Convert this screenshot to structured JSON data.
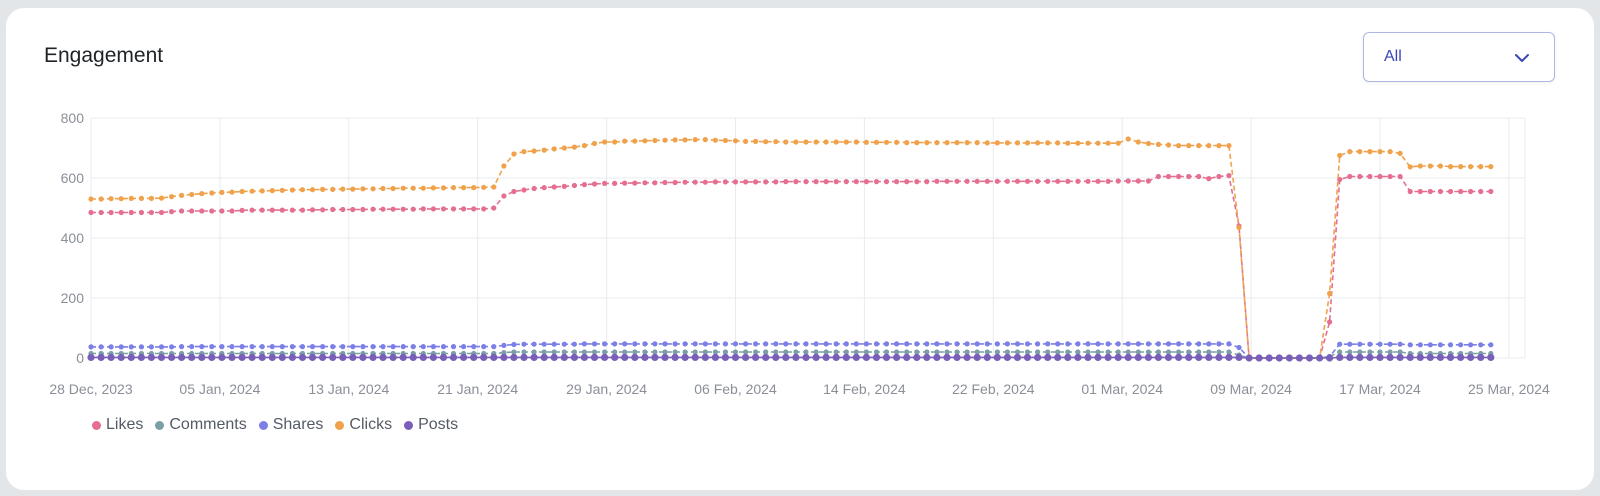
{
  "card": {
    "title": "Engagement",
    "filter": {
      "selected": "All",
      "icon": "chevron-down-icon"
    }
  },
  "colors": {
    "likes": "#e46f91",
    "comments": "#7c9fa6",
    "shares": "#7b7fe6",
    "clicks": "#efa24b",
    "posts": "#7a5fb8",
    "grid": "#e9ebee",
    "accent": "#3a46b8"
  },
  "chart_data": {
    "type": "line",
    "x_start": "2023-12-28",
    "x_end": "2024-03-26",
    "x_tick_labels": [
      "28 Dec, 2023",
      "05 Jan, 2024",
      "13 Jan, 2024",
      "21 Jan, 2024",
      "29 Jan, 2024",
      "06 Feb, 2024",
      "14 Feb, 2024",
      "22 Feb, 2024",
      "01 Mar, 2024",
      "09 Mar, 2024",
      "17 Mar, 2024",
      "25 Mar, 2024"
    ],
    "y_ticks": [
      0,
      200,
      400,
      600,
      800
    ],
    "ylim": [
      0,
      800
    ],
    "grid": true,
    "legend_position": "bottom-left",
    "series": [
      {
        "name": "Likes",
        "color_key": "likes",
        "dashed": true,
        "values": [
          485,
          485,
          485,
          485,
          485,
          485,
          485,
          485,
          488,
          490,
          490,
          490,
          490,
          490,
          490,
          492,
          493,
          493,
          493,
          493,
          493,
          493,
          494,
          494,
          495,
          495,
          495,
          495,
          496,
          496,
          496,
          496,
          496,
          497,
          497,
          497,
          497,
          497,
          497,
          497,
          500,
          540,
          555,
          560,
          565,
          568,
          570,
          572,
          575,
          578,
          580,
          582,
          582,
          583,
          583,
          584,
          584,
          585,
          585,
          586,
          586,
          586,
          587,
          587,
          587,
          587,
          587,
          587,
          587,
          588,
          588,
          588,
          588,
          588,
          588,
          588,
          588,
          588,
          588,
          588,
          588,
          588,
          588,
          588,
          589,
          589,
          589,
          589,
          589,
          589,
          589,
          589,
          589,
          589,
          589,
          589,
          589,
          589,
          589,
          589,
          589,
          589,
          590,
          590,
          590,
          590,
          605,
          605,
          605,
          605,
          605,
          598,
          605,
          608,
          440,
          0,
          0,
          0,
          0,
          0,
          0,
          0,
          0,
          120,
          595,
          605,
          605,
          605,
          605,
          605,
          605,
          555,
          555,
          555,
          555,
          555,
          555,
          555,
          555,
          555
        ]
      },
      {
        "name": "Comments",
        "color_key": "comments",
        "dashed": true,
        "values": [
          15,
          15,
          15,
          15,
          15,
          15,
          15,
          15,
          15,
          15,
          15,
          15,
          15,
          15,
          15,
          15,
          15,
          15,
          15,
          15,
          15,
          15,
          15,
          15,
          15,
          15,
          15,
          15,
          15,
          15,
          15,
          15,
          15,
          15,
          15,
          15,
          15,
          15,
          15,
          15,
          15,
          18,
          20,
          20,
          20,
          20,
          20,
          20,
          20,
          20,
          20,
          20,
          20,
          20,
          20,
          20,
          20,
          20,
          20,
          20,
          20,
          20,
          20,
          20,
          20,
          20,
          20,
          20,
          20,
          20,
          20,
          20,
          20,
          20,
          20,
          20,
          20,
          20,
          20,
          20,
          20,
          20,
          20,
          20,
          20,
          20,
          20,
          20,
          20,
          20,
          20,
          20,
          20,
          20,
          20,
          20,
          20,
          20,
          20,
          20,
          20,
          20,
          20,
          20,
          20,
          20,
          20,
          20,
          20,
          20,
          20,
          20,
          20,
          20,
          10,
          0,
          0,
          0,
          0,
          0,
          0,
          0,
          0,
          5,
          20,
          20,
          20,
          20,
          20,
          20,
          20,
          15,
          15,
          15,
          15,
          15,
          15,
          15,
          15,
          15
        ]
      },
      {
        "name": "Shares",
        "color_key": "shares",
        "dashed": true,
        "values": [
          37,
          37,
          37,
          37,
          37,
          37,
          37,
          37,
          37,
          38,
          38,
          38,
          38,
          38,
          38,
          38,
          38,
          38,
          38,
          38,
          38,
          38,
          38,
          38,
          38,
          38,
          38,
          38,
          38,
          38,
          38,
          38,
          38,
          38,
          38,
          38,
          38,
          38,
          38,
          38,
          38,
          42,
          45,
          46,
          46,
          46,
          46,
          46,
          46,
          47,
          47,
          47,
          47,
          47,
          47,
          47,
          47,
          47,
          47,
          47,
          47,
          47,
          47,
          47,
          47,
          47,
          47,
          47,
          47,
          47,
          47,
          47,
          47,
          47,
          47,
          47,
          47,
          47,
          47,
          47,
          47,
          47,
          47,
          47,
          47,
          47,
          47,
          47,
          47,
          47,
          47,
          47,
          47,
          47,
          47,
          47,
          47,
          47,
          47,
          47,
          47,
          47,
          47,
          47,
          47,
          47,
          47,
          47,
          47,
          47,
          47,
          47,
          47,
          47,
          35,
          0,
          0,
          0,
          0,
          0,
          0,
          0,
          0,
          5,
          46,
          46,
          46,
          46,
          46,
          46,
          46,
          44,
          44,
          44,
          44,
          44,
          44,
          44,
          44,
          44
        ]
      },
      {
        "name": "Clicks",
        "color_key": "clicks",
        "dashed": true,
        "values": [
          530,
          530,
          531,
          531,
          532,
          532,
          532,
          533,
          538,
          542,
          545,
          548,
          550,
          552,
          553,
          555,
          556,
          557,
          558,
          559,
          560,
          561,
          561,
          562,
          562,
          563,
          563,
          564,
          564,
          565,
          565,
          566,
          566,
          566,
          567,
          567,
          568,
          568,
          568,
          569,
          570,
          640,
          680,
          688,
          690,
          693,
          697,
          700,
          703,
          708,
          715,
          720,
          720,
          723,
          723,
          724,
          725,
          726,
          727,
          727,
          728,
          728,
          726,
          725,
          724,
          722,
          722,
          721,
          721,
          720,
          720,
          720,
          720,
          720,
          720,
          720,
          720,
          719,
          719,
          719,
          719,
          718,
          718,
          718,
          718,
          718,
          718,
          718,
          718,
          717,
          717,
          717,
          717,
          717,
          717,
          717,
          717,
          716,
          716,
          716,
          716,
          716,
          716,
          730,
          720,
          715,
          712,
          710,
          708,
          708,
          708,
          708,
          708,
          708,
          435,
          0,
          0,
          0,
          0,
          0,
          0,
          0,
          0,
          215,
          675,
          688,
          688,
          688,
          688,
          688,
          682,
          637,
          640,
          640,
          640,
          638,
          638,
          638,
          638,
          638
        ]
      },
      {
        "name": "Posts",
        "color_key": "posts",
        "dashed": false,
        "values": [
          2,
          2,
          2,
          2,
          2,
          2,
          2,
          2,
          2,
          2,
          2,
          2,
          2,
          2,
          2,
          2,
          2,
          2,
          2,
          2,
          2,
          2,
          2,
          2,
          2,
          2,
          2,
          2,
          2,
          2,
          2,
          2,
          2,
          2,
          2,
          2,
          2,
          2,
          2,
          2,
          2,
          2,
          2,
          2,
          2,
          2,
          2,
          2,
          2,
          2,
          2,
          2,
          2,
          2,
          2,
          2,
          2,
          2,
          2,
          2,
          2,
          2,
          2,
          2,
          2,
          2,
          2,
          2,
          2,
          2,
          2,
          2,
          2,
          2,
          2,
          2,
          2,
          2,
          2,
          2,
          2,
          2,
          2,
          2,
          2,
          2,
          2,
          2,
          2,
          2,
          2,
          2,
          2,
          2,
          2,
          2,
          2,
          2,
          2,
          2,
          2,
          2,
          2,
          2,
          2,
          2,
          2,
          2,
          2,
          2,
          2,
          2,
          2,
          2,
          2,
          0,
          0,
          0,
          0,
          0,
          0,
          0,
          0,
          0,
          2,
          2,
          2,
          2,
          2,
          2,
          2,
          2,
          2,
          2,
          2,
          2,
          2,
          2,
          2,
          2
        ]
      }
    ]
  }
}
